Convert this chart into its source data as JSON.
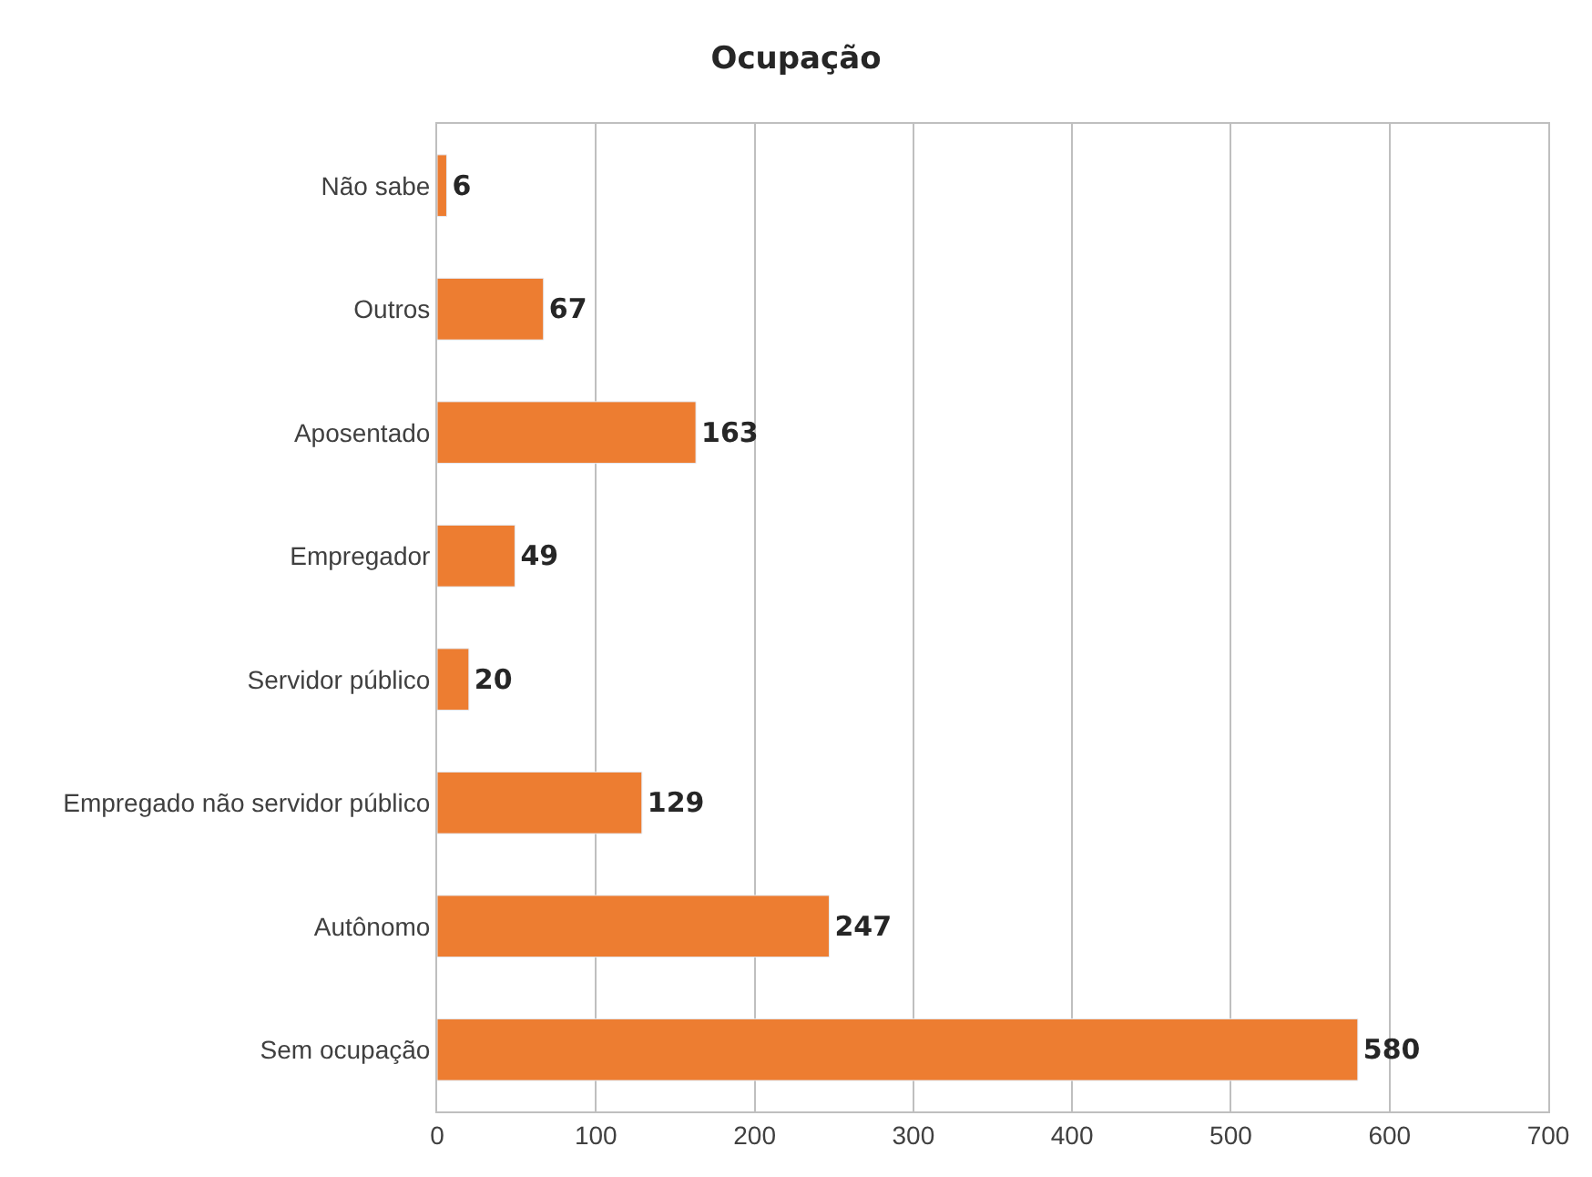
{
  "chart_data": {
    "type": "bar",
    "orientation": "horizontal",
    "title": "Ocupação",
    "categories": [
      "Não sabe",
      "Outros",
      "Aposentado",
      "Empregador",
      "Servidor público",
      "Empregado não servidor público",
      "Autônomo",
      "Sem ocupação"
    ],
    "values": [
      6,
      67,
      163,
      49,
      20,
      129,
      247,
      580
    ],
    "color": "#ed7d31",
    "xlim": [
      0,
      700
    ],
    "xticks": [
      0,
      100,
      200,
      300,
      400,
      500,
      600,
      700
    ],
    "grid": "x",
    "data_labels": true
  }
}
